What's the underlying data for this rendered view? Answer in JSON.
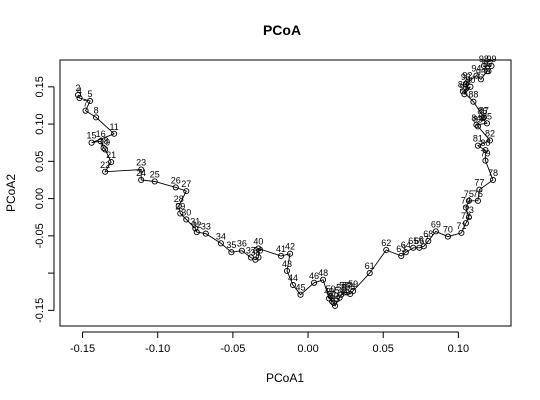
{
  "chart_data": {
    "type": "scatter",
    "title": "PCoA",
    "xlabel": "PCoA1",
    "ylabel": "PCoA2",
    "xlim": [
      -0.165,
      0.135
    ],
    "ylim": [
      -0.171,
      0.186
    ],
    "xticks": [
      -0.15,
      -0.1,
      -0.05,
      0.0,
      0.05,
      0.1
    ],
    "xtick_labels": [
      "-0.15",
      "-0.10",
      "-0.05",
      "0.00",
      "0.05",
      "0.10"
    ],
    "yticks": [
      -0.15,
      -0.1,
      -0.05,
      0.0,
      0.05,
      0.1,
      0.15
    ],
    "ytick_labels": [
      "-0.15",
      "",
      "-0.05",
      "0.00",
      "0.05",
      "0.10",
      "0.15"
    ],
    "grid": false,
    "connected": true,
    "series": [
      {
        "labels": [
          "2",
          "4",
          "5",
          "7",
          "8",
          "11",
          "15",
          "16",
          "18",
          "19",
          "21",
          "22",
          "23",
          "24",
          "25",
          "26",
          "27",
          "28",
          "29",
          "30",
          "31",
          "32",
          "33",
          "34",
          "35",
          "36",
          "37",
          "38",
          "39",
          "40",
          "41",
          "42",
          "43",
          "44",
          "45",
          "46",
          "48",
          "49",
          "50",
          "51",
          "52",
          "53",
          "54",
          "55",
          "56",
          "57",
          "58",
          "59",
          "61",
          "62",
          "63",
          "64",
          "65",
          "66",
          "67",
          "68",
          "69",
          "70",
          "71",
          "72",
          "73",
          "74",
          "75",
          "76",
          "77",
          "78",
          "79",
          "80",
          "81",
          "82",
          "83",
          "84",
          "85",
          "86",
          "87",
          "88",
          "89",
          "90",
          "91",
          "92",
          "93",
          "94",
          "95",
          "96",
          "97",
          "98",
          "99"
        ],
        "x": [
          -0.153,
          -0.152,
          -0.145,
          -0.148,
          -0.141,
          -0.129,
          -0.144,
          -0.138,
          -0.136,
          -0.135,
          -0.131,
          -0.135,
          -0.111,
          -0.111,
          -0.102,
          -0.088,
          -0.081,
          -0.086,
          -0.085,
          -0.081,
          -0.075,
          -0.074,
          -0.068,
          -0.058,
          -0.051,
          -0.044,
          -0.038,
          -0.035,
          -0.033,
          -0.033,
          -0.018,
          -0.012,
          -0.014,
          -0.01,
          -0.005,
          0.004,
          0.01,
          0.014,
          0.015,
          0.016,
          0.017,
          0.018,
          0.021,
          0.022,
          0.024,
          0.026,
          0.028,
          0.03,
          0.041,
          0.052,
          0.062,
          0.065,
          0.07,
          0.074,
          0.077,
          0.08,
          0.085,
          0.093,
          0.102,
          0.105,
          0.107,
          0.105,
          0.107,
          0.113,
          0.114,
          0.123,
          0.118,
          0.118,
          0.113,
          0.121,
          0.113,
          0.112,
          0.119,
          0.116,
          0.117,
          0.11,
          0.103,
          0.108,
          0.104,
          0.106,
          0.105,
          0.112,
          0.115,
          0.119,
          0.12,
          0.117,
          0.122
        ],
        "y": [
          0.139,
          0.135,
          0.131,
          0.118,
          0.109,
          0.087,
          0.075,
          0.077,
          0.068,
          0.066,
          0.049,
          0.036,
          0.039,
          0.025,
          0.023,
          0.015,
          0.01,
          -0.01,
          -0.02,
          -0.028,
          -0.04,
          -0.045,
          -0.047,
          -0.06,
          -0.072,
          -0.07,
          -0.079,
          -0.082,
          -0.079,
          -0.067,
          -0.077,
          -0.074,
          -0.097,
          -0.116,
          -0.129,
          -0.113,
          -0.109,
          -0.134,
          -0.131,
          -0.138,
          -0.14,
          -0.144,
          -0.133,
          -0.129,
          -0.126,
          -0.126,
          -0.128,
          -0.124,
          -0.1,
          -0.069,
          -0.077,
          -0.072,
          -0.066,
          -0.066,
          -0.064,
          -0.057,
          -0.044,
          -0.051,
          -0.046,
          -0.033,
          -0.025,
          -0.012,
          -0.003,
          -0.003,
          0.012,
          0.025,
          0.051,
          0.065,
          0.071,
          0.078,
          0.097,
          0.099,
          0.101,
          0.108,
          0.109,
          0.13,
          0.144,
          0.15,
          0.14,
          0.156,
          0.154,
          0.165,
          0.16,
          0.171,
          0.171,
          0.178,
          0.178
        ]
      }
    ]
  }
}
